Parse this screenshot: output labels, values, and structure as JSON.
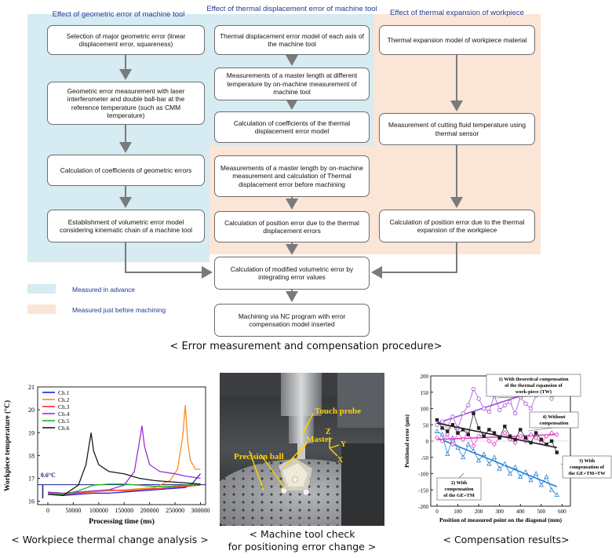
{
  "flowchart": {
    "headers": {
      "geometric": "Effect of geometric error of machine tool",
      "thermal": "Effect of thermal displacement error of machine tool",
      "workpiece": "Effect of thermal expansion of workpiece"
    },
    "boxes": {
      "g1": "Selection of major geometric error (linear displacement error, squareness)",
      "g2": "Geometric error measurement with laser interferometer and double ball-bar at the reference temperature (such as CMM temperature)",
      "g3": "Calculation of coefficients of geometric errors",
      "g4": "Establishment of volumetric error model considering kinematic chain of a machine tool",
      "t1": "Thermal displacement error model of each axis of the machine tool",
      "t2": "Measurements of a master length at different temperature by on-machine measurement of machine tool",
      "t3": "Calculation of coefficients of the thermal displacement error model",
      "t4": "Measurements of a master length by on-machine measurement and calculation of Thermal displacement error before machining",
      "t5": "Calculation of position error due to the thermal displacement errors",
      "w1": "Thermal expansion model of workpiece material",
      "w2": "Measurement of cutting fluid temperature using thermal sensor",
      "w3": "Calculation of position error due to the thermal expansion of the workpiece",
      "m1": "Calculation of modified volumetric error by integrating error values",
      "m2": "Machining via NC program with error compensation model inserted"
    },
    "legend": {
      "advance": "Measured in advance",
      "before": "Measured just before machining"
    },
    "colors": {
      "advance": "#d6ebf2",
      "before": "#fbe5d6",
      "header": "#1f3a8f"
    },
    "caption": "< Error measurement and compensation procedure>"
  },
  "photo": {
    "labels": {
      "touch_probe": "Touch probe",
      "master": "Master",
      "precision_ball": "Precision ball",
      "z": "Z",
      "y": "Y",
      "x": "X"
    },
    "caption_line1": "< Machine tool check",
    "caption_line2": "for positioning error change >"
  },
  "chart_data": [
    {
      "type": "line",
      "title": "",
      "xlabel": "Processing time (ms)",
      "ylabel": "Workpiece temperature (°C)",
      "xlim": [
        -20000,
        310000
      ],
      "ylim": [
        15.85,
        21
      ],
      "xticks": [
        0,
        50000,
        100000,
        150000,
        200000,
        250000,
        300000
      ],
      "yticks": [
        16,
        17,
        18,
        19,
        20,
        21
      ],
      "legend_position": "top-left",
      "annotation": "0.6°C",
      "threshold": 16.72,
      "series": [
        {
          "name": "Ch.1",
          "color": "#1f1fd6",
          "x": [
            0,
            30000,
            60000,
            90000,
            120000,
            150000,
            180000,
            210000,
            240000,
            270000,
            285000,
            300000
          ],
          "y": [
            16.3,
            16.25,
            16.3,
            16.35,
            16.35,
            16.4,
            16.45,
            16.5,
            16.55,
            16.6,
            16.8,
            17.2
          ]
        },
        {
          "name": "Ch.2",
          "color": "#ff8c1a",
          "x": [
            0,
            30000,
            60000,
            90000,
            120000,
            150000,
            180000,
            210000,
            240000,
            255000,
            265000,
            270000,
            275000,
            280000,
            290000,
            300000
          ],
          "y": [
            16.35,
            16.3,
            16.35,
            16.4,
            16.45,
            16.5,
            16.55,
            16.6,
            16.9,
            17.4,
            18.8,
            20.2,
            18.6,
            17.8,
            17.4,
            17.4
          ]
        },
        {
          "name": "Ch.3",
          "color": "#ff2a2a",
          "x": [
            0,
            30000,
            60000,
            90000,
            120000,
            150000,
            180000,
            210000,
            240000,
            270000,
            300000
          ],
          "y": [
            16.4,
            16.3,
            16.35,
            16.45,
            16.5,
            16.45,
            16.5,
            16.55,
            16.6,
            16.65,
            16.7
          ]
        },
        {
          "name": "Ch.4",
          "color": "#9b30d9",
          "x": [
            0,
            30000,
            60000,
            90000,
            120000,
            150000,
            170000,
            180000,
            185000,
            190000,
            200000,
            220000,
            250000,
            270000,
            300000
          ],
          "y": [
            16.4,
            16.35,
            16.4,
            16.45,
            16.5,
            16.7,
            17.3,
            18.6,
            19.3,
            18.4,
            17.6,
            17.3,
            17.2,
            17.1,
            17.0
          ]
        },
        {
          "name": "Ch.5",
          "color": "#22b322",
          "x": [
            0,
            30000,
            60000,
            90000,
            120000,
            150000,
            180000,
            210000,
            240000,
            270000,
            300000
          ],
          "y": [
            16.35,
            16.3,
            16.45,
            16.7,
            16.75,
            16.75,
            16.7,
            16.65,
            16.65,
            16.7,
            16.75
          ]
        },
        {
          "name": "Ch.6",
          "color": "#1a1a1a",
          "x": [
            0,
            30000,
            60000,
            75000,
            85000,
            90000,
            100000,
            120000,
            150000,
            180000,
            210000,
            240000,
            270000,
            300000
          ],
          "y": [
            16.3,
            16.25,
            16.7,
            17.6,
            19.0,
            18.2,
            17.6,
            17.3,
            17.2,
            17.0,
            16.9,
            16.85,
            16.8,
            16.75
          ]
        }
      ]
    },
    {
      "type": "line",
      "title": "",
      "xlabel": "Position of measured point on the diagonal (mm)",
      "ylabel": "Positional error (μm)",
      "xlim": [
        -30,
        640
      ],
      "ylim": [
        -200,
        200
      ],
      "xticks": [
        0,
        100,
        200,
        300,
        400,
        500,
        600
      ],
      "yticks": [
        -200,
        -150,
        -100,
        -50,
        0,
        50,
        100,
        150,
        200
      ],
      "series": [
        {
          "name": "1) With theoretical compensation of the thermal expansion of work-piece (TW)",
          "color": "#a248d6",
          "marker": "circle-open",
          "x": [
            0,
            25,
            50,
            75,
            100,
            125,
            150,
            175,
            200,
            225,
            250,
            275,
            300,
            325,
            350,
            375,
            400,
            425,
            450,
            475,
            500,
            525,
            550,
            575
          ],
          "y": [
            50,
            60,
            45,
            75,
            40,
            85,
            110,
            160,
            130,
            100,
            90,
            140,
            95,
            110,
            120,
            85,
            135,
            115,
            100,
            140,
            150,
            165,
            130,
            150
          ],
          "fit": [
            55,
            175
          ]
        },
        {
          "name": "2) With compensation of the GE+TM",
          "color": "#1f7fd6",
          "marker": "triangle-open",
          "x": [
            0,
            25,
            50,
            75,
            100,
            125,
            150,
            175,
            200,
            225,
            250,
            275,
            300,
            325,
            350,
            375,
            400,
            425,
            450,
            475,
            500,
            525,
            550,
            575
          ],
          "y": [
            30,
            20,
            -40,
            10,
            -20,
            -50,
            -10,
            -30,
            -60,
            -40,
            -70,
            -50,
            -85,
            -70,
            -100,
            -80,
            -110,
            -95,
            -120,
            -100,
            -135,
            -110,
            -150,
            -165
          ],
          "fit": [
            10,
            -140
          ]
        },
        {
          "name": "3) With compensation of the GE+TM+TW",
          "color": "#e040c8",
          "marker": "diamond-open",
          "x": [
            0,
            25,
            50,
            75,
            100,
            125,
            150,
            175,
            200,
            225,
            250,
            275,
            300,
            325,
            350,
            375,
            400,
            425,
            450,
            475,
            500,
            525,
            550,
            575
          ],
          "y": [
            10,
            0,
            20,
            -10,
            25,
            5,
            30,
            -15,
            15,
            20,
            0,
            -10,
            10,
            25,
            5,
            -5,
            15,
            0,
            20,
            10,
            -5,
            15,
            25,
            20
          ],
          "fit": [
            5,
            20
          ]
        },
        {
          "name": "4) Without compensation",
          "color": "#222222",
          "marker": "square-filled",
          "x": [
            0,
            25,
            50,
            75,
            100,
            125,
            150,
            175,
            200,
            225,
            250,
            275,
            300,
            325,
            350,
            375,
            400,
            425,
            450,
            475,
            500,
            525,
            550,
            575
          ],
          "y": [
            65,
            40,
            30,
            50,
            25,
            35,
            20,
            85,
            40,
            15,
            35,
            25,
            10,
            45,
            15,
            5,
            35,
            10,
            -5,
            25,
            5,
            -10,
            0,
            -35
          ],
          "fit": [
            55,
            -20
          ]
        }
      ]
    }
  ],
  "captions": {
    "temperature": "< Workpiece thermal change analysis >",
    "compensation": "< Compensation results>"
  }
}
